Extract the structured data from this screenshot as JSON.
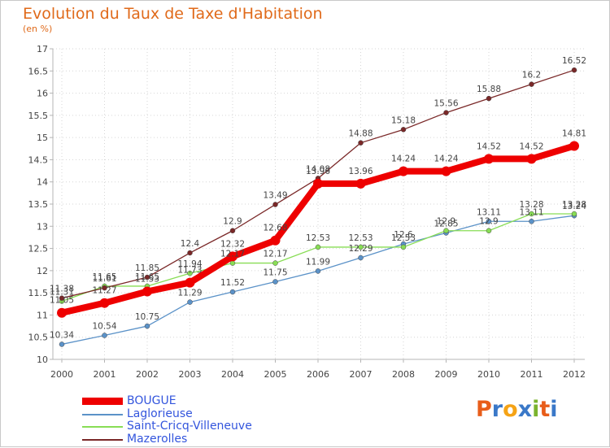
{
  "chart_data": {
    "type": "line",
    "title": "Evolution du Taux de Taxe d'Habitation",
    "subtitle": "(en %)",
    "x": [
      "2000",
      "2001",
      "2002",
      "2003",
      "2004",
      "2005",
      "2006",
      "2007",
      "2008",
      "2009",
      "2010",
      "2011",
      "2012"
    ],
    "ylim": [
      10,
      17
    ],
    "yticks": [
      "10",
      "10.5",
      "11",
      "11.5",
      "12",
      "12.5",
      "13",
      "13.5",
      "14",
      "14.5",
      "15",
      "15.5",
      "16",
      "16.5",
      "17"
    ],
    "series": [
      {
        "name": "BOUGUE",
        "color": "#ee0000",
        "values": [
          11.05,
          11.27,
          11.53,
          11.73,
          12.32,
          12.68,
          13.96,
          13.96,
          14.24,
          14.24,
          14.52,
          14.52,
          14.81
        ],
        "labels": [
          "11.05",
          "11.27",
          "11.53",
          "11.73",
          "12.32",
          "12.68",
          "13.96",
          "13.96",
          "14.24",
          "14.24",
          "14.52",
          "14.52",
          "14.81"
        ]
      },
      {
        "name": "Laglorieuse",
        "color": "#5b92c8",
        "values": [
          10.34,
          10.54,
          10.75,
          11.29,
          11.52,
          11.75,
          11.99,
          12.29,
          12.6,
          12.85,
          13.11,
          13.11,
          13.24
        ],
        "labels": [
          "10.34",
          "10.54",
          "10.75",
          "11.29",
          "11.52",
          "11.75",
          "11.99",
          "12.29",
          "12.6",
          "12.85",
          "13.11",
          "13.11",
          "13.24"
        ]
      },
      {
        "name": "Saint-Cricq-Villeneuve",
        "color": "#88dd55",
        "values": [
          11.31,
          11.65,
          11.65,
          11.94,
          12.17,
          12.17,
          12.53,
          12.53,
          12.53,
          12.9,
          12.9,
          13.28,
          13.28
        ],
        "labels": [
          "11.31",
          "11.65",
          "11.65",
          "11.94",
          "12.17",
          "12.17",
          "12.53",
          "12.53",
          "12.53",
          "12.9",
          "12.9",
          "13.28",
          "13.28"
        ]
      },
      {
        "name": "Mazerolles",
        "color": "#7a2828",
        "values": [
          11.38,
          11.61,
          11.85,
          12.4,
          12.9,
          13.49,
          14.08,
          14.88,
          15.18,
          15.56,
          15.88,
          16.2,
          16.52
        ],
        "labels": [
          "11.38",
          "11.61",
          "11.85",
          "12.4",
          "12.9",
          "13.49",
          "14.08",
          "14.88",
          "15.18",
          "15.56",
          "15.88",
          "16.2",
          "16.52"
        ]
      }
    ]
  },
  "logo": {
    "text": "Proxiti",
    "letters": [
      "P",
      "r",
      "o",
      "x",
      "i",
      "t",
      "i"
    ],
    "colors": [
      "#e85d1a",
      "#3a78c8",
      "#f5a316",
      "#3a78c8",
      "#7ab32e",
      "#e85d1a",
      "#3a78c8"
    ]
  }
}
